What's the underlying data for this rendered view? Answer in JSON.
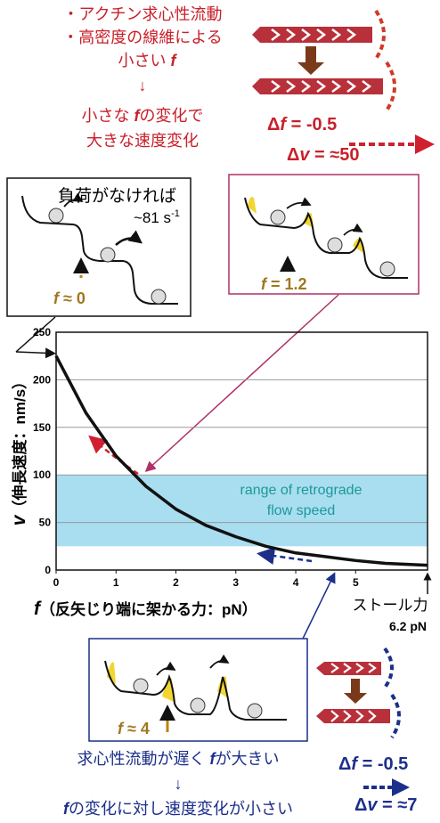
{
  "chart_data": {
    "type": "line",
    "x": [
      0,
      0.5,
      1,
      1.5,
      2,
      2.5,
      3,
      3.5,
      4,
      4.5,
      5,
      5.5,
      6.2
    ],
    "values": [
      225,
      165,
      120,
      88,
      64,
      47,
      35,
      25,
      18,
      14,
      10,
      7,
      5
    ],
    "color": "#111111",
    "xlim": [
      0,
      6.2
    ],
    "xticks": [
      0,
      1,
      2,
      3,
      4,
      5
    ],
    "ylim": [
      0,
      250
    ],
    "yticks": [
      0,
      50,
      100,
      150,
      200,
      250
    ],
    "grid": true,
    "ylabel": {
      "symbol": "v",
      "text": "（伸長速度：nm/s）"
    },
    "xlabel": {
      "symbol": "f",
      "text": "（反矢じり端に架かる力：pN）"
    },
    "band": {
      "range": [
        25,
        100
      ],
      "color": "#a9ddf0",
      "label": [
        "range of retrograde",
        "flow speed"
      ]
    },
    "stall": {
      "label": "ストール力",
      "value_label": "6.2 pN"
    }
  },
  "top_note": {
    "line1": "・アクチン求心性流動",
    "line2": "・高密度の線維による",
    "line3": "小さい ",
    "line3_f": "f",
    "arrow": "↓",
    "line4": "小さな ",
    "line4_f": "f",
    "line4_rest": "の変化で",
    "line5": "大きな速度変化"
  },
  "top_delta": {
    "df_sym": "Δ",
    "df_f": "f",
    "df_rest": " = -0.5",
    "dv_sym": "Δ",
    "dv_v": "v",
    "dv_rest": " = ≈50"
  },
  "box1": {
    "text": "負荷がなければ",
    "rate": "~81 s",
    "rate_sup": "-1",
    "f_label": "f",
    "f_rest": " ≈ 0"
  },
  "box2": {
    "f_label": "f",
    "f_rest": " = 1.2"
  },
  "box3": {
    "f_label": "f",
    "f_rest": " ≈ 4"
  },
  "bottom_note": {
    "line1": "求心性流動が遅く ",
    "line1_f": "f",
    "line1_rest": "が大きい",
    "arrow": "↓",
    "line2_f": "f",
    "line2": "の変化に対し速度変化が小さい"
  },
  "bottom_delta": {
    "df_sym": "Δ",
    "df_f": "f",
    "df_rest": " = -0.5",
    "dv_sym": "Δ",
    "dv_v": "v",
    "dv_rest": " = ≈7"
  }
}
